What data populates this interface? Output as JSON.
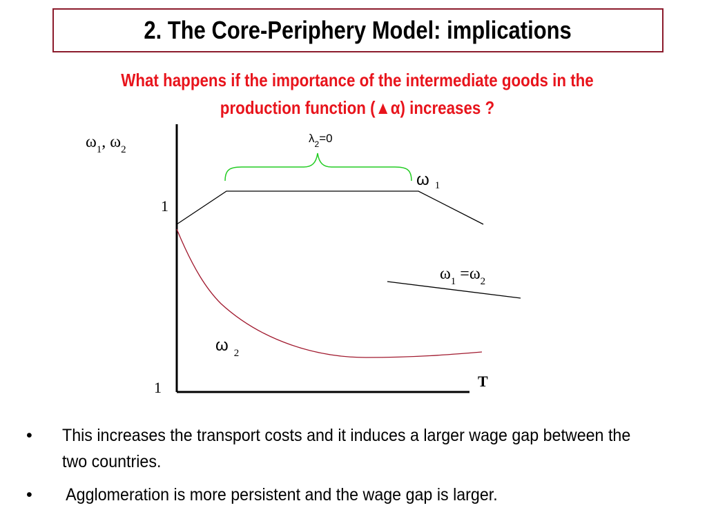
{
  "slide": {
    "title": "2. The Core-Periphery Model: implications",
    "question": {
      "before": "What happens if the importance of the intermediate goods in the production function (",
      "triangle": "▲",
      "alpha": "α",
      "after": ")  increases ?"
    }
  },
  "diagram": {
    "y_axis_label": {
      "w1": "ω",
      "sub1": "1",
      "sep": ", ",
      "w2": "ω",
      "sub2": "2"
    },
    "lambda_label": {
      "symbol": "λ",
      "sub": "2",
      "rest": "=0"
    },
    "omega1_label": {
      "symbol": "ω",
      "sub": "1"
    },
    "omega2_label": {
      "symbol": "ω",
      "sub": "2"
    },
    "equal_label": {
      "w1": "ω",
      "sub1": "1",
      "eq": " =",
      "w2": "ω",
      "sub2": "2"
    },
    "y_tick_one": "1",
    "origin_label": "1",
    "x_axis_label": "T",
    "colors": {
      "omega2_curve": "#a0182d",
      "brace": "#22cc22",
      "lines": "#000000"
    }
  },
  "bullets": [
    {
      "marker": "•",
      "text": "This increases the transport costs and it induces a larger wage gap between the two countries."
    },
    {
      "marker": "•",
      "text": " Agglomeration is more persistent and the wage gap is larger."
    }
  ]
}
